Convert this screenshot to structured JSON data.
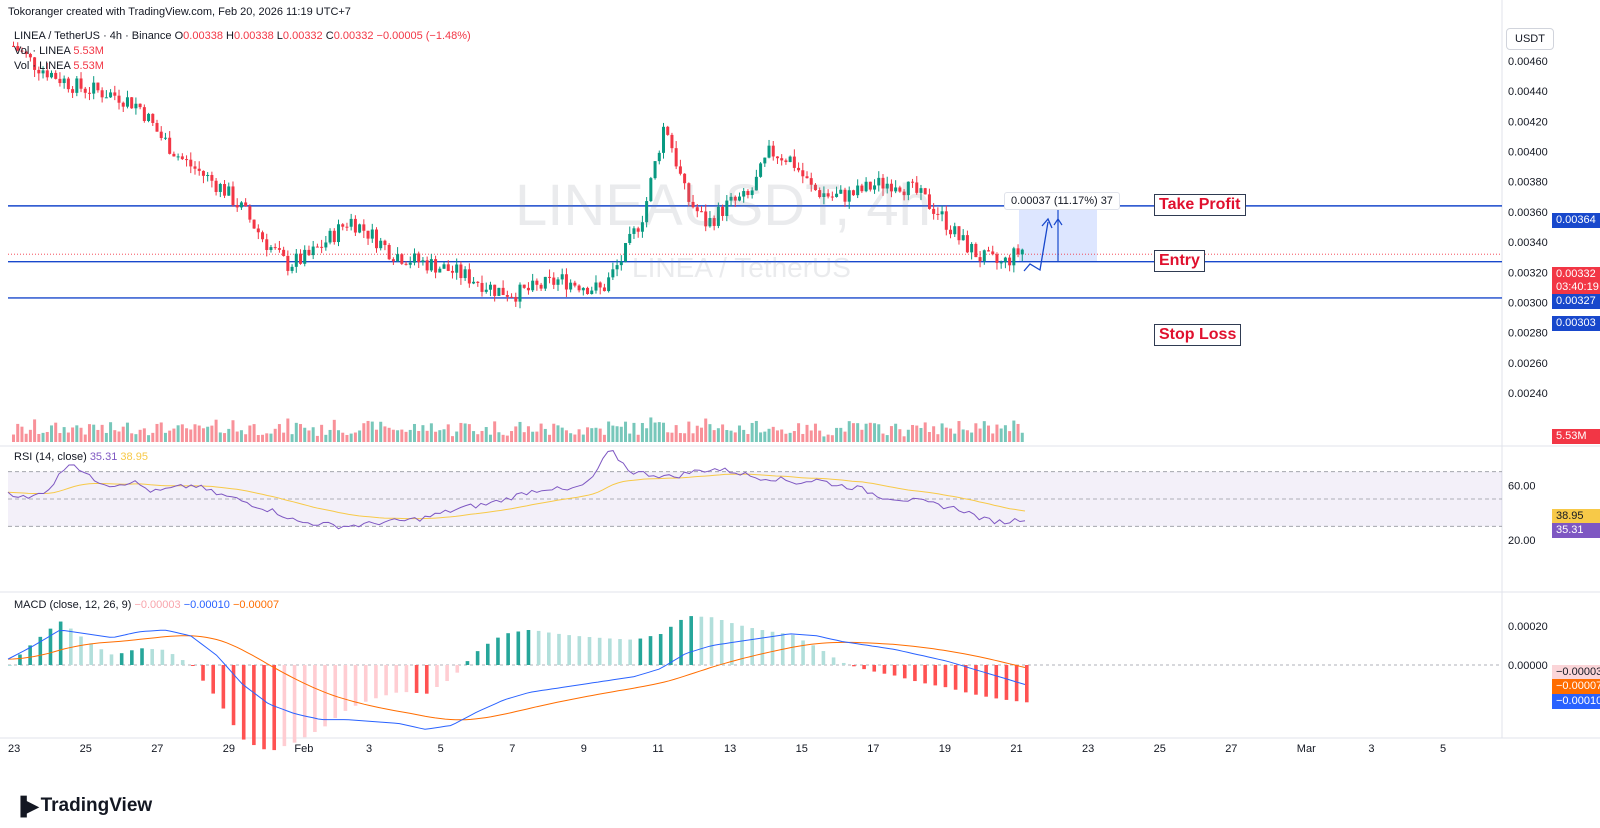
{
  "header": {
    "credit": "Tokoranger created with TradingView.com, Feb 20, 2026 11:19 UTC+7",
    "symbol_line": "LINEA / TetherUS · 4h · Binance",
    "ohlc": {
      "o_label": "O",
      "o": "0.00338",
      "h_label": "H",
      "h": "0.00338",
      "l_label": "L",
      "l": "0.00332",
      "c_label": "C",
      "c": "0.00332",
      "change": "−0.00005 (−1.48%)"
    },
    "vol_label_1": "Vol · LINEA",
    "vol_value_1": "5.53M",
    "vol_label_2": "Vol · LINEA",
    "vol_value_2": "5.53M"
  },
  "watermark": {
    "symbol": "LINEAUSDT, 4h",
    "pair": "LINEA / TetherUS"
  },
  "currency": "USDT",
  "annotations": {
    "take_profit": "Take Profit",
    "entry": "Entry",
    "stop_loss": "Stop Loss",
    "measure": "0.00037 (11.17%) 37"
  },
  "price_tags": {
    "take_profit": "0.00364",
    "current": "0.00332",
    "countdown": "03:40:19",
    "entry": "0.00327",
    "stop_loss": "0.00303",
    "volume": "5.53M"
  },
  "rsi": {
    "label": "RSI (14, close)",
    "value": "35.31",
    "ma_value": "38.95",
    "ticks": [
      "60.00",
      "20.00"
    ]
  },
  "macd": {
    "label": "MACD (close, 12, 26, 9)",
    "hist": "−0.00003",
    "macd": "−0.00010",
    "signal": "−0.00007",
    "ticks": [
      "0.00020",
      "0.00000"
    ]
  },
  "logo": "TradingView",
  "colors": {
    "up": "#089981",
    "down": "#f23645",
    "level": "#1848cc",
    "rsi": "#7e57c2",
    "rsi_ma": "#f7c948",
    "macd": "#2962ff",
    "signal": "#ff6d00"
  },
  "chart_data": {
    "type": "candlestick",
    "timeframe": "4h",
    "price_axis_ticks": [
      0.0046,
      0.0044,
      0.0042,
      0.004,
      0.0038,
      0.0036,
      0.0034,
      0.0032,
      0.003,
      0.0028,
      0.0026,
      0.0024
    ],
    "price_tick_labels": [
      "0.00460",
      "0.00440",
      "0.00420",
      "0.00400",
      "0.00380",
      "0.00360",
      "0.00340",
      "0.00320",
      "0.00300",
      "0.00280",
      "0.00260",
      "0.00240"
    ],
    "date_labels": [
      "23",
      "25",
      "27",
      "29",
      "Feb",
      "3",
      "5",
      "7",
      "9",
      "11",
      "13",
      "15",
      "17",
      "19",
      "21",
      "23",
      "25",
      "27",
      "Mar",
      "3",
      "5"
    ],
    "levels": {
      "take_profit": 0.00364,
      "entry": 0.00327,
      "stop_loss": 0.00303
    },
    "close_path": [
      0.0047,
      0.00458,
      0.0045,
      0.00443,
      0.0044,
      0.00437,
      0.0043,
      0.0041,
      0.00395,
      0.00385,
      0.00375,
      0.0036,
      0.0034,
      0.00325,
      0.0033,
      0.00342,
      0.00355,
      0.00345,
      0.00333,
      0.00328,
      0.00325,
      0.0032,
      0.00315,
      0.00308,
      0.00306,
      0.0031,
      0.00315,
      0.00312,
      0.00308,
      0.0033,
      0.0036,
      0.0042,
      0.0037,
      0.00352,
      0.00365,
      0.0037,
      0.004,
      0.00395,
      0.00375,
      0.0037,
      0.00372,
      0.00378,
      0.0038,
      0.00372,
      0.0036,
      0.00342,
      0.0033,
      0.00325,
      0.00335
    ],
    "rsi_path": [
      55,
      50,
      58,
      78,
      65,
      60,
      63,
      55,
      58,
      60,
      54,
      50,
      45,
      40,
      33,
      32,
      30,
      31,
      33,
      34,
      36,
      40,
      44,
      46,
      50,
      55,
      58,
      56,
      62,
      86,
      70,
      68,
      66,
      70,
      72,
      70,
      66,
      65,
      62,
      64,
      60,
      58,
      52,
      50,
      48,
      45,
      42,
      35,
      33,
      36
    ],
    "macd_path": [
      3e-05,
      0.0001,
      0.00018,
      0.00016,
      0.00014,
      0.00017,
      0.00018,
      0.00015,
      5e-05,
      -0.0001,
      -0.0002,
      -0.00025,
      -0.00028,
      -0.00028,
      -0.00029,
      -0.0003,
      -0.00033,
      -0.00031,
      -0.00024,
      -0.00018,
      -0.00014,
      -0.00012,
      -0.0001,
      -8e-05,
      -6e-05,
      -2e-05,
      6e-05,
      0.0001,
      0.00012,
      0.00014,
      0.00016,
      0.00015,
      0.00012,
      0.0001,
      8e-05,
      5e-05,
      2e-05,
      -2e-05,
      -6e-05,
      -0.0001
    ]
  }
}
